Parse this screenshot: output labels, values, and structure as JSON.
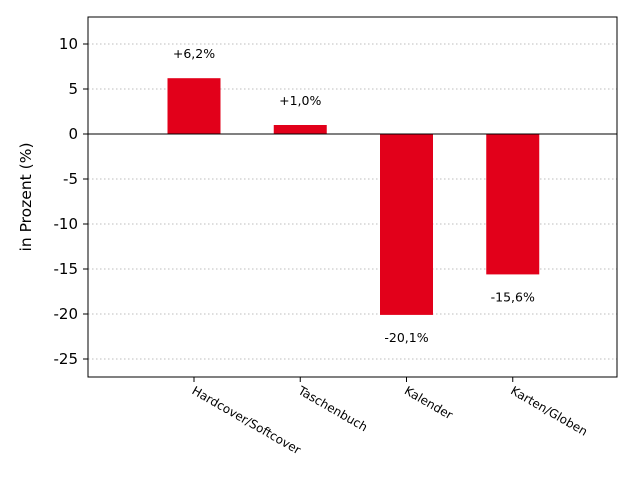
{
  "chart_data": {
    "type": "bar",
    "title": "",
    "xlabel": "",
    "ylabel": "in Prozent (%)",
    "categories": [
      "Hardcover/Softcover",
      "Taschenbuch",
      "Kalender",
      "Karten/Globen"
    ],
    "values": [
      6.2,
      1.0,
      -20.1,
      -15.6
    ],
    "data_labels": [
      "+6,2%",
      "+1,0%",
      "-20,1%",
      "-15,6%"
    ],
    "yticks": [
      10,
      5,
      0,
      -5,
      -10,
      -15,
      -20,
      -25
    ],
    "ylim": [
      -27,
      13
    ],
    "grid": true,
    "bar_color": "#e2001a"
  }
}
